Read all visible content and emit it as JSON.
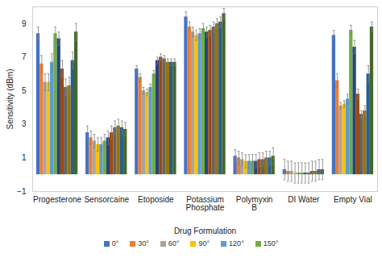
{
  "chart_data": {
    "type": "bar",
    "x_label": "Drug Formulation",
    "y_label": "Sensitivity (dBm)",
    "categories": [
      "Progesterone",
      "Sensorcaine",
      "Etoposide",
      "Potassium Phosphate",
      "Polymyxin B",
      "DI Water",
      "Empty Vial"
    ],
    "ylim": [
      -1,
      10
    ],
    "yticks": [
      -1,
      1,
      3,
      5,
      7,
      9
    ],
    "grid": false,
    "legend": "bottom",
    "series": [
      {
        "name": "0°",
        "color": "#4472C4",
        "values": [
          8.4,
          2.5,
          6.3,
          9.4,
          1.1,
          0.3,
          8.3
        ],
        "errors": [
          0.4,
          0.4,
          0.2,
          0.3,
          0.4,
          0.6,
          0.3
        ]
      },
      {
        "name": "30°",
        "color": "#ED7D31",
        "values": [
          6.6,
          2.2,
          5.8,
          8.8,
          1.0,
          0.2,
          5.6
        ],
        "errors": [
          0.5,
          0.4,
          0.2,
          0.3,
          0.4,
          0.6,
          0.4
        ]
      },
      {
        "name": "60°",
        "color": "#A5A5A5",
        "values": [
          5.5,
          2.0,
          5.0,
          8.5,
          0.9,
          0.2,
          4.1
        ],
        "errors": [
          0.5,
          0.4,
          0.2,
          0.3,
          0.4,
          0.6,
          0.2
        ]
      },
      {
        "name": "90°",
        "color": "#FFC000",
        "values": [
          5.5,
          1.8,
          4.9,
          8.3,
          0.8,
          0.1,
          4.2
        ],
        "errors": [
          0.5,
          0.4,
          0.2,
          0.3,
          0.4,
          0.6,
          0.2
        ]
      },
      {
        "name": "120°",
        "color": "#5B9BD5",
        "values": [
          6.7,
          1.8,
          5.2,
          8.4,
          0.8,
          0.1,
          4.5
        ],
        "errors": [
          0.5,
          0.4,
          0.2,
          0.3,
          0.4,
          0.6,
          0.3
        ]
      },
      {
        "name": "150°",
        "color": "#70AD47",
        "values": [
          8.4,
          2.0,
          6.0,
          8.7,
          0.8,
          0.1,
          8.6
        ],
        "errors": [
          0.4,
          0.4,
          0.2,
          0.3,
          0.4,
          0.6,
          0.3
        ]
      },
      {
        "name": null,
        "color": "#264478",
        "values": [
          8.1,
          2.2,
          6.8,
          8.5,
          0.8,
          0.1,
          7.6
        ],
        "errors": [
          0.4,
          0.4,
          0.2,
          0.3,
          0.4,
          0.6,
          0.4
        ]
      },
      {
        "name": null,
        "color": "#9E480E",
        "values": [
          6.3,
          2.5,
          7.0,
          8.6,
          0.9,
          0.1,
          4.8
        ],
        "errors": [
          0.5,
          0.4,
          0.2,
          0.3,
          0.4,
          0.6,
          0.3
        ]
      },
      {
        "name": null,
        "color": "#636363",
        "values": [
          5.2,
          2.8,
          6.9,
          8.8,
          0.9,
          0.2,
          3.6
        ],
        "errors": [
          0.5,
          0.4,
          0.2,
          0.3,
          0.4,
          0.6,
          0.2
        ]
      },
      {
        "name": null,
        "color": "#997300",
        "values": [
          5.3,
          2.9,
          6.7,
          9.0,
          1.0,
          0.2,
          3.8
        ],
        "errors": [
          0.5,
          0.4,
          0.2,
          0.3,
          0.4,
          0.6,
          0.3
        ]
      },
      {
        "name": null,
        "color": "#255E91",
        "values": [
          6.8,
          2.8,
          6.7,
          9.1,
          1.0,
          0.3,
          6.0
        ],
        "errors": [
          0.5,
          0.4,
          0.2,
          0.3,
          0.4,
          0.6,
          0.5
        ]
      },
      {
        "name": null,
        "color": "#43682B",
        "values": [
          8.5,
          2.7,
          6.7,
          9.6,
          1.1,
          0.3,
          8.8
        ],
        "errors": [
          0.5,
          0.4,
          0.2,
          0.3,
          0.5,
          0.6,
          0.3
        ]
      }
    ]
  }
}
